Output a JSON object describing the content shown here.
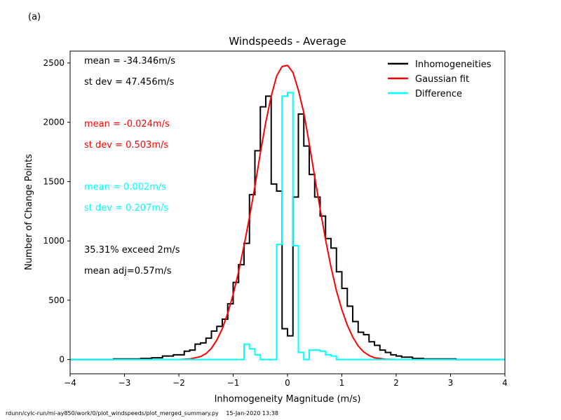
{
  "panel_label": "(a)",
  "footer": {
    "path": "rdunn/cylc-run/mi-ay850/work/0/plot_windspeeds/plot_merged_summary.py",
    "timestamp": "15-Jan-2020 13:38"
  },
  "colors": {
    "inhomogeneities": "#000000",
    "gaussian_fit": "#ff0000",
    "difference": "#00ffff"
  },
  "chart_data": {
    "type": "line",
    "title": "Windspeeds - Average",
    "xlabel": "Inhomogeneity Magnitude (m/s)",
    "ylabel": "Number of Change Points",
    "xlim": [
      -4,
      4
    ],
    "ylim": [
      -120,
      2600
    ],
    "xticks": [
      -4,
      -3,
      -2,
      -1,
      0,
      1,
      2,
      3,
      4
    ],
    "yticks": [
      0,
      500,
      1000,
      1500,
      2000,
      2500
    ],
    "grid": false,
    "legend_position": "top-right",
    "bin_edges": [
      -4.0,
      -3.9,
      -3.8,
      -3.7,
      -3.6,
      -3.5,
      -3.4,
      -3.3,
      -3.2,
      -3.1,
      -3.0,
      -2.9,
      -2.8,
      -2.7,
      -2.6,
      -2.5,
      -2.4,
      -2.3,
      -2.2,
      -2.1,
      -2.0,
      -1.9,
      -1.8,
      -1.7,
      -1.6,
      -1.5,
      -1.4,
      -1.3,
      -1.2,
      -1.1,
      -1.0,
      -0.9,
      -0.8,
      -0.7,
      -0.6,
      -0.5,
      -0.4,
      -0.3,
      -0.2,
      -0.1,
      0.0,
      0.1,
      0.2,
      0.3,
      0.4,
      0.5,
      0.6,
      0.7,
      0.8,
      0.9,
      1.0,
      1.1,
      1.2,
      1.3,
      1.4,
      1.5,
      1.6,
      1.7,
      1.8,
      1.9,
      2.0,
      2.1,
      2.2,
      2.3,
      2.4,
      2.5,
      2.6,
      2.7,
      2.8,
      2.9,
      3.0,
      3.1,
      3.2,
      3.3,
      3.4,
      3.5,
      3.6,
      3.7,
      3.8,
      3.9,
      4.0
    ],
    "series": [
      {
        "name": "Inhomogeneities",
        "kind": "step",
        "values": [
          0,
          0,
          0,
          0,
          0,
          0,
          0,
          0,
          5,
          5,
          5,
          5,
          5,
          10,
          10,
          15,
          15,
          30,
          30,
          40,
          40,
          70,
          80,
          130,
          140,
          180,
          240,
          280,
          340,
          470,
          650,
          800,
          980,
          1390,
          1760,
          2130,
          2220,
          1480,
          1420,
          260,
          200,
          1370,
          2070,
          1800,
          1560,
          1370,
          1210,
          1020,
          940,
          740,
          600,
          450,
          320,
          230,
          210,
          150,
          120,
          80,
          60,
          40,
          30,
          20,
          20,
          10,
          10,
          5,
          5,
          5,
          5,
          5,
          5,
          0,
          0,
          0,
          0,
          0,
          0,
          0,
          0,
          0
        ]
      },
      {
        "name": "Gaussian fit",
        "kind": "line",
        "x": [
          -2.0,
          -1.8,
          -1.6,
          -1.5,
          -1.4,
          -1.3,
          -1.2,
          -1.1,
          -1.0,
          -0.9,
          -0.8,
          -0.7,
          -0.6,
          -0.5,
          -0.4,
          -0.3,
          -0.2,
          -0.1,
          0.0,
          0.1,
          0.2,
          0.3,
          0.4,
          0.5,
          0.6,
          0.7,
          0.8,
          0.9,
          1.0,
          1.1,
          1.2,
          1.3,
          1.4,
          1.5,
          1.6,
          1.8,
          2.0
        ],
        "values": [
          0,
          5,
          25,
          50,
          95,
          165,
          260,
          390,
          550,
          740,
          960,
          1200,
          1460,
          1740,
          2000,
          2220,
          2390,
          2470,
          2480,
          2420,
          2270,
          2080,
          1820,
          1540,
          1270,
          1010,
          780,
          580,
          420,
          290,
          190,
          115,
          65,
          35,
          15,
          3,
          0
        ]
      },
      {
        "name": "Difference",
        "kind": "step",
        "values": [
          0,
          0,
          0,
          0,
          0,
          0,
          0,
          0,
          0,
          0,
          0,
          0,
          0,
          0,
          0,
          0,
          0,
          0,
          0,
          0,
          0,
          0,
          0,
          0,
          0,
          0,
          0,
          0,
          0,
          0,
          0,
          0,
          130,
          90,
          40,
          0,
          0,
          0,
          970,
          2220,
          2250,
          960,
          60,
          0,
          80,
          80,
          70,
          40,
          30,
          0,
          0,
          0,
          0,
          0,
          0,
          0,
          0,
          0,
          0,
          0,
          0,
          0,
          0,
          0,
          0,
          0,
          0,
          0,
          0,
          0,
          0,
          0,
          0,
          0,
          0,
          0,
          0,
          0,
          0,
          0
        ]
      }
    ],
    "annotations": [
      {
        "text": "mean = -34.346m/s",
        "color": "#000000"
      },
      {
        "text": "st dev = 47.456m/s",
        "color": "#000000"
      },
      {
        "text": "mean = -0.024m/s",
        "color": "#ff0000"
      },
      {
        "text": "st dev =  0.503m/s",
        "color": "#ff0000"
      },
      {
        "text": "mean =  0.002m/s",
        "color": "#00ffff"
      },
      {
        "text": "st dev =  0.207m/s",
        "color": "#00ffff"
      },
      {
        "text": "35.31% exceed 2m/s",
        "color": "#000000"
      },
      {
        "text": "mean adj=0.57m/s",
        "color": "#000000"
      }
    ]
  }
}
